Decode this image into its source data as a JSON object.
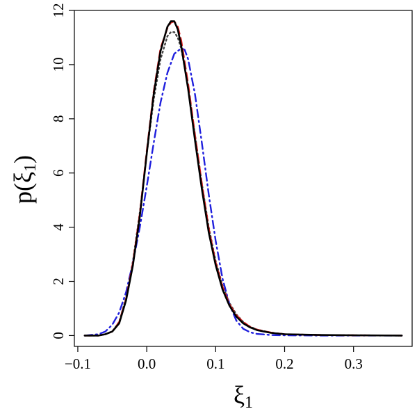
{
  "chart_data": {
    "type": "line",
    "title": "",
    "xlabel": "ξ",
    "xlabel_sub": "1",
    "ylabel_prefix": "p(ξ",
    "ylabel_sub": "1",
    "ylabel_suffix": ")",
    "xlim": [
      -0.105,
      0.385
    ],
    "ylim": [
      -0.4,
      12.0
    ],
    "xticks": [
      -0.1,
      0.0,
      0.1,
      0.2,
      0.3
    ],
    "xtick_labels": [
      "−0.1",
      "0.0",
      "0.1",
      "0.2",
      "0.3"
    ],
    "yticks": [
      0,
      2,
      4,
      6,
      8,
      10,
      12
    ],
    "ytick_labels": [
      "0",
      "2",
      "4",
      "6",
      "8",
      "10",
      "12"
    ],
    "grid": false,
    "legend": "none",
    "series": [
      {
        "style": "solid",
        "color": "#000000",
        "x": [
          -0.09,
          -0.07,
          -0.06,
          -0.05,
          -0.04,
          -0.03,
          -0.02,
          -0.01,
          0.0,
          0.01,
          0.02,
          0.03,
          0.035,
          0.04,
          0.045,
          0.05,
          0.06,
          0.07,
          0.08,
          0.09,
          0.1,
          0.11,
          0.12,
          0.13,
          0.14,
          0.15,
          0.16,
          0.18,
          0.2,
          0.25,
          0.3,
          0.37
        ],
        "y": [
          0.0,
          0.0,
          0.05,
          0.15,
          0.45,
          1.3,
          2.6,
          4.4,
          6.7,
          8.9,
          10.5,
          11.4,
          11.6,
          11.6,
          11.3,
          10.7,
          9.1,
          7.2,
          5.4,
          3.8,
          2.6,
          1.7,
          1.1,
          0.7,
          0.45,
          0.3,
          0.2,
          0.1,
          0.05,
          0.02,
          0.01,
          0.0
        ]
      },
      {
        "style": "dashed",
        "color": "#dd1c1c",
        "x": [
          -0.09,
          -0.07,
          -0.06,
          -0.05,
          -0.04,
          -0.03,
          -0.02,
          -0.01,
          0.0,
          0.01,
          0.02,
          0.03,
          0.035,
          0.04,
          0.045,
          0.05,
          0.06,
          0.07,
          0.08,
          0.09,
          0.1,
          0.11,
          0.12,
          0.13,
          0.14,
          0.15,
          0.16,
          0.18,
          0.2,
          0.25,
          0.3,
          0.37
        ],
        "y": [
          0.0,
          0.0,
          0.05,
          0.15,
          0.5,
          1.35,
          2.7,
          4.5,
          6.8,
          9.0,
          10.6,
          11.35,
          11.55,
          11.6,
          11.4,
          10.9,
          9.3,
          7.4,
          5.6,
          3.95,
          2.7,
          1.8,
          1.15,
          0.75,
          0.5,
          0.32,
          0.22,
          0.11,
          0.05,
          0.02,
          0.01,
          0.0
        ]
      },
      {
        "style": "dotted",
        "color": "#444444",
        "x": [
          -0.09,
          -0.07,
          -0.06,
          -0.05,
          -0.04,
          -0.03,
          -0.02,
          -0.01,
          0.0,
          0.01,
          0.02,
          0.03,
          0.035,
          0.04,
          0.045,
          0.05,
          0.06,
          0.07,
          0.08,
          0.09,
          0.1,
          0.11,
          0.12,
          0.13,
          0.14,
          0.15,
          0.16,
          0.18,
          0.2,
          0.25,
          0.3,
          0.37
        ],
        "y": [
          0.0,
          0.0,
          0.05,
          0.15,
          0.5,
          1.4,
          2.75,
          4.55,
          6.7,
          8.7,
          10.2,
          11.05,
          11.2,
          11.2,
          11.0,
          10.6,
          9.2,
          7.4,
          5.6,
          4.0,
          2.75,
          1.85,
          1.2,
          0.78,
          0.5,
          0.33,
          0.22,
          0.11,
          0.05,
          0.02,
          0.01,
          0.0
        ]
      },
      {
        "style": "dashdot",
        "color": "#1f1fdd",
        "x": [
          -0.09,
          -0.07,
          -0.06,
          -0.05,
          -0.04,
          -0.03,
          -0.02,
          -0.01,
          0.0,
          0.01,
          0.02,
          0.03,
          0.04,
          0.05,
          0.055,
          0.06,
          0.07,
          0.08,
          0.09,
          0.1,
          0.11,
          0.12,
          0.13,
          0.14,
          0.15,
          0.16,
          0.18,
          0.2,
          0.25,
          0.3,
          0.37
        ],
        "y": [
          0.0,
          0.05,
          0.15,
          0.4,
          0.85,
          1.6,
          2.7,
          4.0,
          5.5,
          7.1,
          8.6,
          9.7,
          10.4,
          10.6,
          10.55,
          10.2,
          8.9,
          7.1,
          5.2,
          3.5,
          2.1,
          1.15,
          0.55,
          0.25,
          0.12,
          0.06,
          0.02,
          0.01,
          0.0,
          0.0,
          0.0
        ]
      }
    ]
  }
}
